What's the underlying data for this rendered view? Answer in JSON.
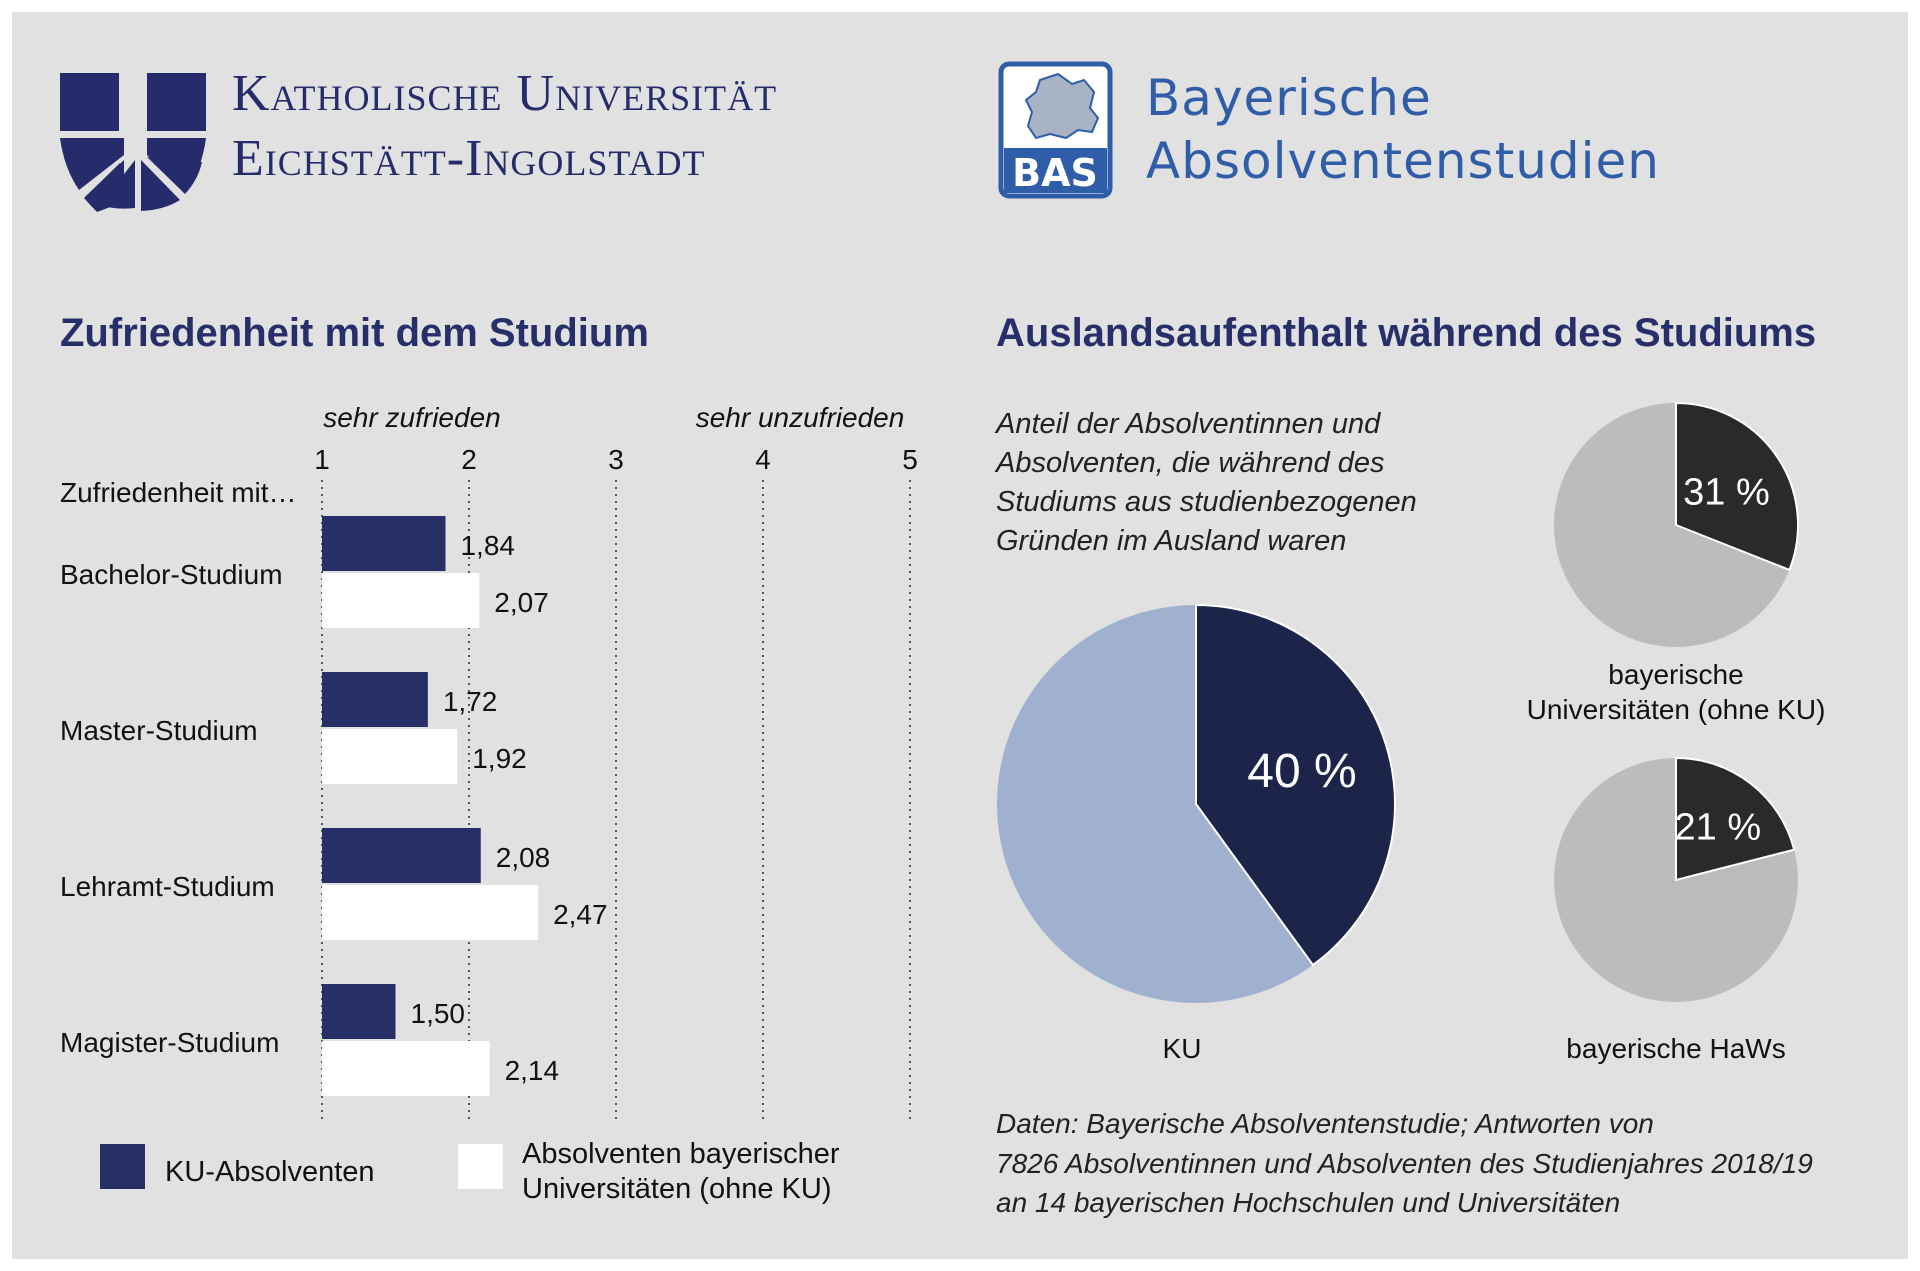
{
  "header": {
    "ku_line1": "Katholische Universität",
    "ku_line2": "Eichstätt-Ingolstadt",
    "bas_badge": "BAS",
    "bas_line1": "Bayerische",
    "bas_line2": "Absolventenstudien"
  },
  "colors": {
    "ku_navy": "#262f66",
    "other_white": "#ffffff",
    "pie_ku_light": "#a0b1cf",
    "pie_ku_dark": "#1d2449",
    "pie_other_light": "#bcbcbc",
    "pie_other_dark": "#2a2a2a",
    "bas_blue": "#2f5da8"
  },
  "bar_section": {
    "title": "Zufriedenheit mit dem Studium",
    "left_end_label": "sehr zufrieden",
    "right_end_label": "sehr unzufrieden",
    "row_header": "Zufriedenheit mit…",
    "legend": {
      "series1": "KU-Absolventen",
      "series2_line1": "Absolventen bayerischer",
      "series2_line2": "Universitäten (ohne KU)"
    }
  },
  "pie_section": {
    "title": "Auslandsaufenthalt während des Studiums",
    "description": [
      "Anteil der Absolventinnen und",
      "Absolventen, die während des",
      "Studiums aus studienbezogenen",
      "Gründen im Ausland waren"
    ],
    "source": [
      "Daten: Bayerische Absolventenstudie; Antworten von",
      "7826 Absolventinnen und Absolventen des Studienjahres 2018/19",
      "an 14 bayerischen Hochschulen und Universitäten"
    ]
  },
  "chart_data": [
    {
      "type": "bar",
      "orientation": "horizontal",
      "title": "Zufriedenheit mit dem Studium",
      "categories": [
        "Bachelor-Studium",
        "Master-Studium",
        "Lehramt-Studium",
        "Magister-Studium"
      ],
      "series": [
        {
          "name": "KU-Absolventen",
          "values": [
            1.84,
            1.72,
            2.08,
            1.5
          ],
          "labels": [
            "1,84",
            "1,72",
            "2,08",
            "1,50"
          ]
        },
        {
          "name": "Absolventen bayerischer Universitäten (ohne KU)",
          "values": [
            2.07,
            1.92,
            2.47,
            2.14
          ],
          "labels": [
            "2,07",
            "1,92",
            "2,47",
            "2,14"
          ]
        }
      ],
      "xlim": [
        1,
        5
      ],
      "xticks": [
        "1",
        "2",
        "3",
        "4",
        "5"
      ],
      "grid": "vertical dotted",
      "legend": "bottom"
    },
    {
      "type": "pie",
      "label": "KU",
      "value": 40,
      "value_label": "40 %"
    },
    {
      "type": "pie",
      "label_lines": [
        "bayerische",
        "Universitäten (ohne KU)"
      ],
      "value": 31,
      "value_label": "31 %"
    },
    {
      "type": "pie",
      "label": "bayerische HaWs",
      "value": 21,
      "value_label": "21 %"
    }
  ]
}
